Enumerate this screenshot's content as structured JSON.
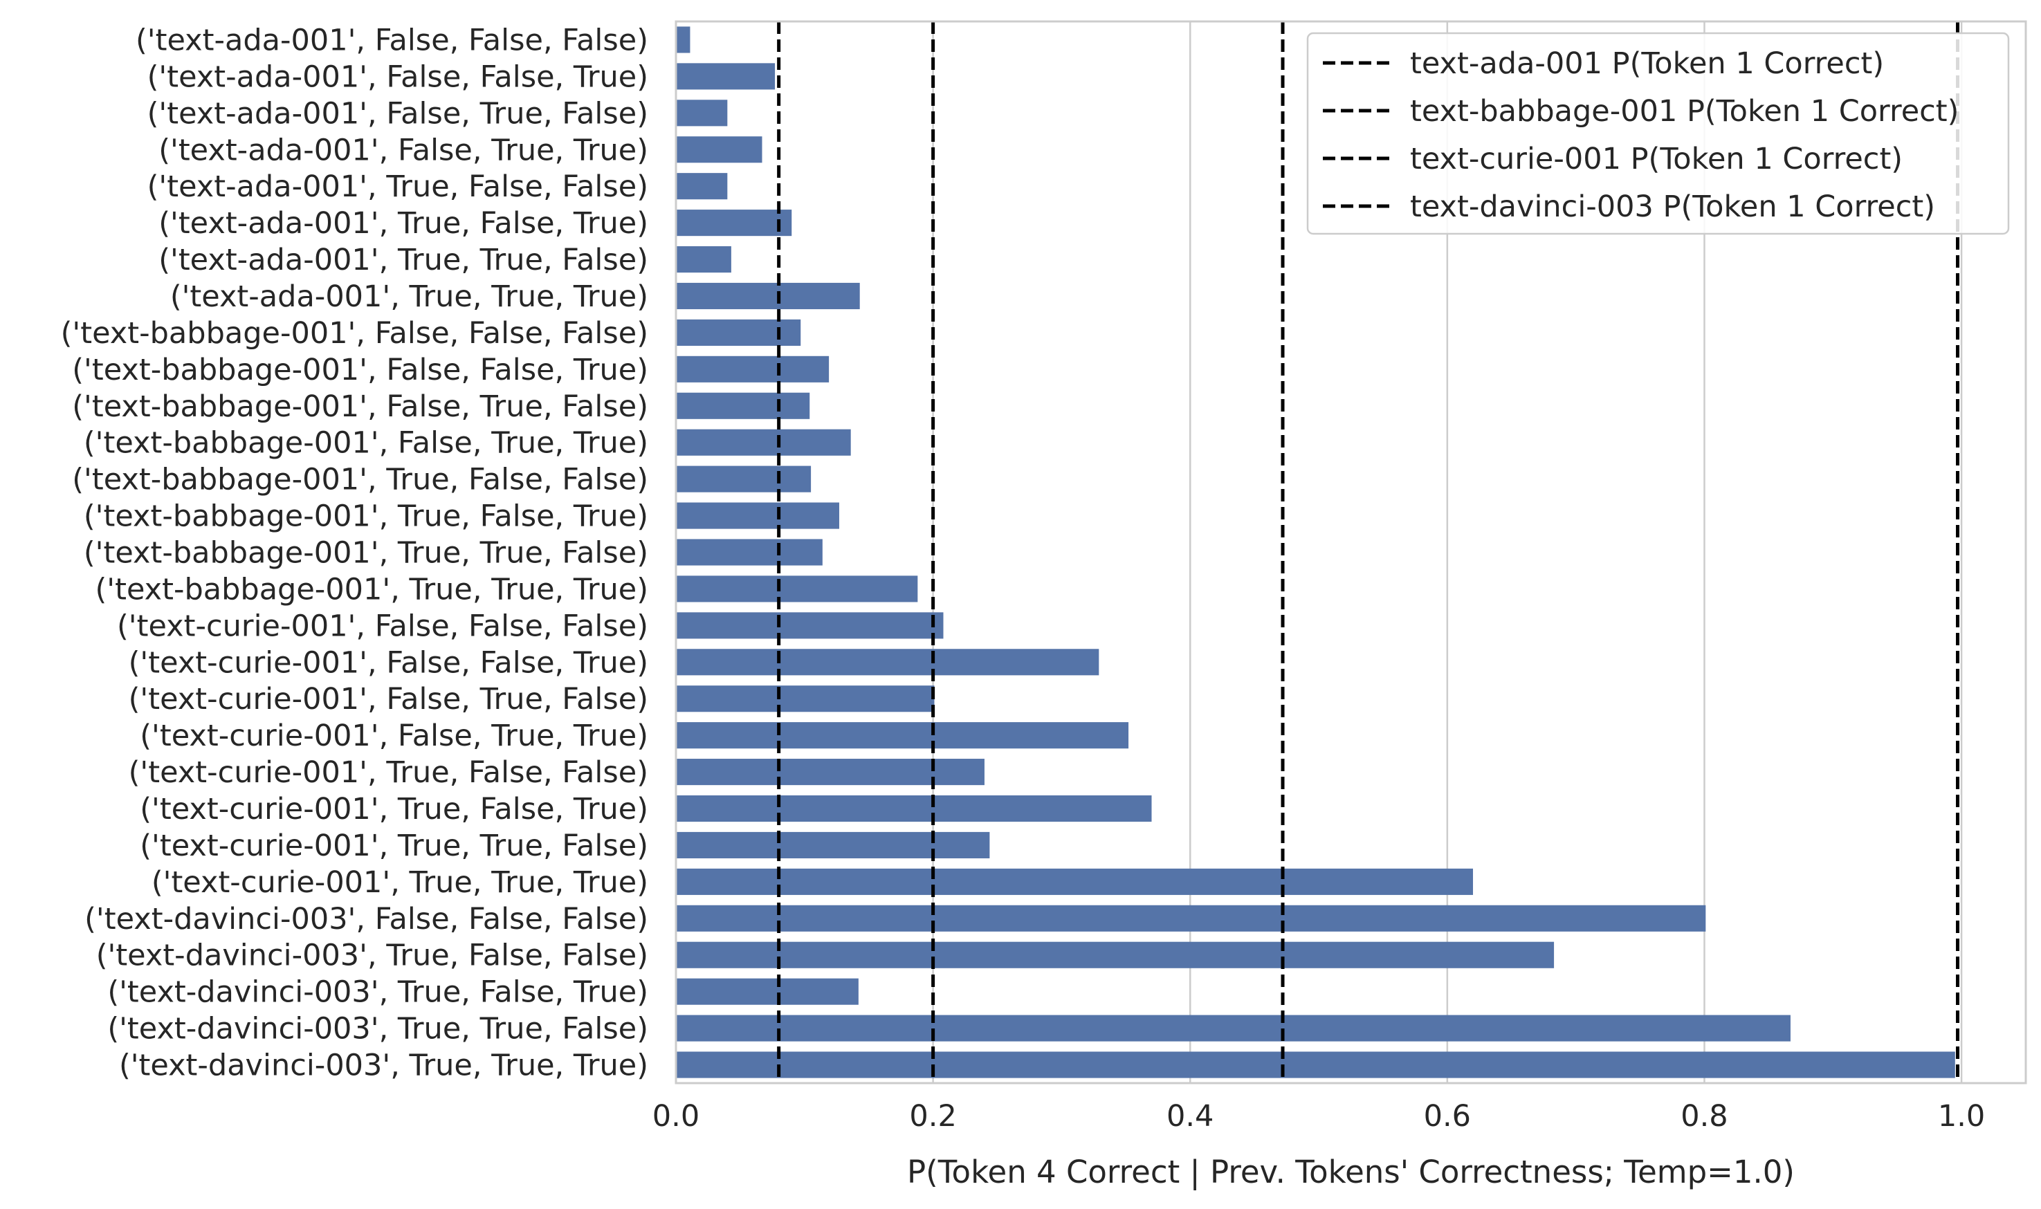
{
  "chart_data": {
    "type": "bar",
    "orientation": "horizontal",
    "categories": [
      "('text-ada-001', False, False, False)",
      "('text-ada-001', False, False, True)",
      "('text-ada-001', False, True, False)",
      "('text-ada-001', False, True, True)",
      "('text-ada-001', True, False, False)",
      "('text-ada-001', True, False, True)",
      "('text-ada-001', True, True, False)",
      "('text-ada-001', True, True, True)",
      "('text-babbage-001', False, False, False)",
      "('text-babbage-001', False, False, True)",
      "('text-babbage-001', False, True, False)",
      "('text-babbage-001', False, True, True)",
      "('text-babbage-001', True, False, False)",
      "('text-babbage-001', True, False, True)",
      "('text-babbage-001', True, True, False)",
      "('text-babbage-001', True, True, True)",
      "('text-curie-001', False, False, False)",
      "('text-curie-001', False, False, True)",
      "('text-curie-001', False, True, False)",
      "('text-curie-001', False, True, True)",
      "('text-curie-001', True, False, False)",
      "('text-curie-001', True, False, True)",
      "('text-curie-001', True, True, False)",
      "('text-curie-001', True, True, True)",
      "('text-davinci-003', False, False, False)",
      "('text-davinci-003', True, False, False)",
      "('text-davinci-003', True, False, True)",
      "('text-davinci-003', True, True, False)",
      "('text-davinci-003', True, True, True)"
    ],
    "values": [
      0.011,
      0.077,
      0.04,
      0.067,
      0.04,
      0.09,
      0.043,
      0.143,
      0.097,
      0.119,
      0.104,
      0.136,
      0.105,
      0.127,
      0.114,
      0.188,
      0.208,
      0.329,
      0.201,
      0.352,
      0.24,
      0.37,
      0.244,
      0.62,
      0.801,
      0.683,
      0.142,
      0.867,
      0.995
    ],
    "reference_lines": [
      {
        "name": "text-ada-001 P(Token 1 Correct)",
        "value": 0.08
      },
      {
        "name": "text-babbage-001 P(Token 1 Correct)",
        "value": 0.2
      },
      {
        "name": "text-curie-001 P(Token 1 Correct)",
        "value": 0.472
      },
      {
        "name": "text-davinci-003 P(Token 1 Correct)",
        "value": 0.997
      }
    ],
    "xlabel": "P(Token 4 Correct | Prev. Tokens' Correctness; Temp=1.0)",
    "ylabel": "",
    "xlim": [
      0,
      1.05
    ],
    "xticks": [
      "0.0",
      "0.2",
      "0.4",
      "0.6",
      "0.8",
      "1.0"
    ],
    "grid": "vertical",
    "legend_position": "top-right",
    "colors": {
      "bar": "#5574a8",
      "reference_line": "#000000",
      "grid": "#cccccc",
      "frame": "#cccccc"
    }
  }
}
